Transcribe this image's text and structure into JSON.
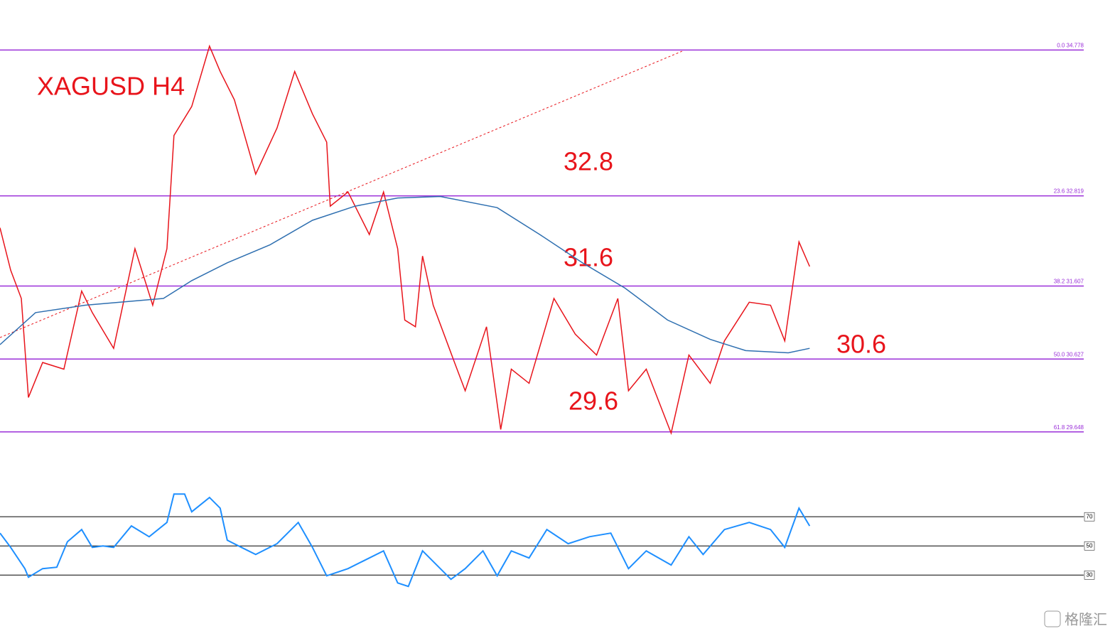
{
  "chart_data": [
    {
      "type": "line",
      "title": "XAGUSD H4",
      "annotations": [
        "32.8",
        "31.6",
        "30.6",
        "29.6"
      ],
      "xlim": [
        0,
        314
      ],
      "ylim": [
        29.34,
        35.45
      ],
      "yticks": [
        {
          "value": 34.778,
          "label": "0.0 34.778"
        },
        {
          "value": 32.819,
          "label": "23.6 32.819"
        },
        {
          "value": 31.607,
          "label": "38.2 31.607"
        },
        {
          "value": 30.627,
          "label": "50.0 30.627"
        },
        {
          "value": 29.648,
          "label": "61.8 29.648"
        }
      ],
      "grid_color": "#9b30d9",
      "series": [
        {
          "color": "#e8141b",
          "x": [
            0,
            3,
            6,
            8,
            12,
            18,
            23,
            26,
            32,
            38,
            43,
            47,
            49,
            54,
            59,
            62,
            66,
            72,
            78,
            83,
            88,
            92,
            93,
            98,
            104,
            108,
            112,
            114,
            117,
            119,
            122,
            128,
            131,
            137,
            141,
            144,
            149,
            156,
            162,
            168,
            174,
            177,
            182,
            189,
            194,
            200,
            204,
            211,
            217,
            221,
            225,
            228
          ],
          "values": [
            32.39,
            31.82,
            31.44,
            30.11,
            30.58,
            30.49,
            31.54,
            31.25,
            30.77,
            32.11,
            31.35,
            32.11,
            33.63,
            34.02,
            34.83,
            34.49,
            34.11,
            33.11,
            33.73,
            34.49,
            33.92,
            33.54,
            32.68,
            32.87,
            32.3,
            32.87,
            32.11,
            31.15,
            31.06,
            32.01,
            31.35,
            30.58,
            30.2,
            31.06,
            29.68,
            30.49,
            30.3,
            31.44,
            30.96,
            30.68,
            31.44,
            30.2,
            30.49,
            29.63,
            30.68,
            30.3,
            30.87,
            31.39,
            31.35,
            30.87,
            32.2,
            31.87
          ]
        },
        {
          "color": "#2e6fb0",
          "x": [
            0,
            10,
            24,
            46,
            54,
            64,
            76,
            88,
            100,
            112,
            124,
            140,
            152,
            164,
            176,
            188,
            200,
            210,
            222,
            228
          ],
          "values": [
            30.82,
            31.25,
            31.35,
            31.44,
            31.68,
            31.92,
            32.16,
            32.49,
            32.68,
            32.79,
            32.81,
            32.66,
            32.3,
            31.92,
            31.58,
            31.15,
            30.89,
            30.74,
            30.71,
            30.77
          ]
        }
      ]
    },
    {
      "type": "line",
      "xlim": [
        0,
        314
      ],
      "ylim": [
        15,
        93
      ],
      "yticks": [
        30,
        50,
        70
      ],
      "grid_color": "#000000",
      "series": [
        {
          "color": "#1e8fff",
          "x": [
            0,
            3,
            7,
            8,
            12,
            16,
            19,
            23,
            26,
            29,
            32,
            37,
            42,
            47,
            49,
            52,
            54,
            59,
            62,
            64,
            68,
            72,
            78,
            84,
            88,
            92,
            98,
            102,
            108,
            112,
            115,
            119,
            122,
            127,
            131,
            136,
            140,
            144,
            149,
            154,
            160,
            166,
            172,
            177,
            182,
            189,
            194,
            198,
            204,
            211,
            217,
            221,
            225,
            228
          ],
          "values": [
            58.8,
            49.0,
            34.4,
            28.5,
            34.4,
            35.4,
            52.9,
            61.2,
            49.0,
            50.0,
            49.0,
            63.7,
            56.3,
            66.1,
            85.6,
            85.6,
            73.4,
            83.2,
            75.9,
            53.9,
            49.0,
            44.1,
            51.5,
            66.1,
            49.0,
            29.5,
            34.4,
            39.3,
            46.6,
            24.6,
            22.2,
            46.6,
            39.3,
            27.1,
            34.4,
            46.6,
            29.5,
            46.6,
            41.7,
            61.2,
            51.5,
            56.3,
            58.8,
            34.4,
            46.6,
            36.9,
            56.3,
            44.1,
            61.2,
            66.1,
            61.2,
            49.0,
            75.9,
            63.7
          ]
        }
      ]
    }
  ],
  "watermark": "格隆汇"
}
